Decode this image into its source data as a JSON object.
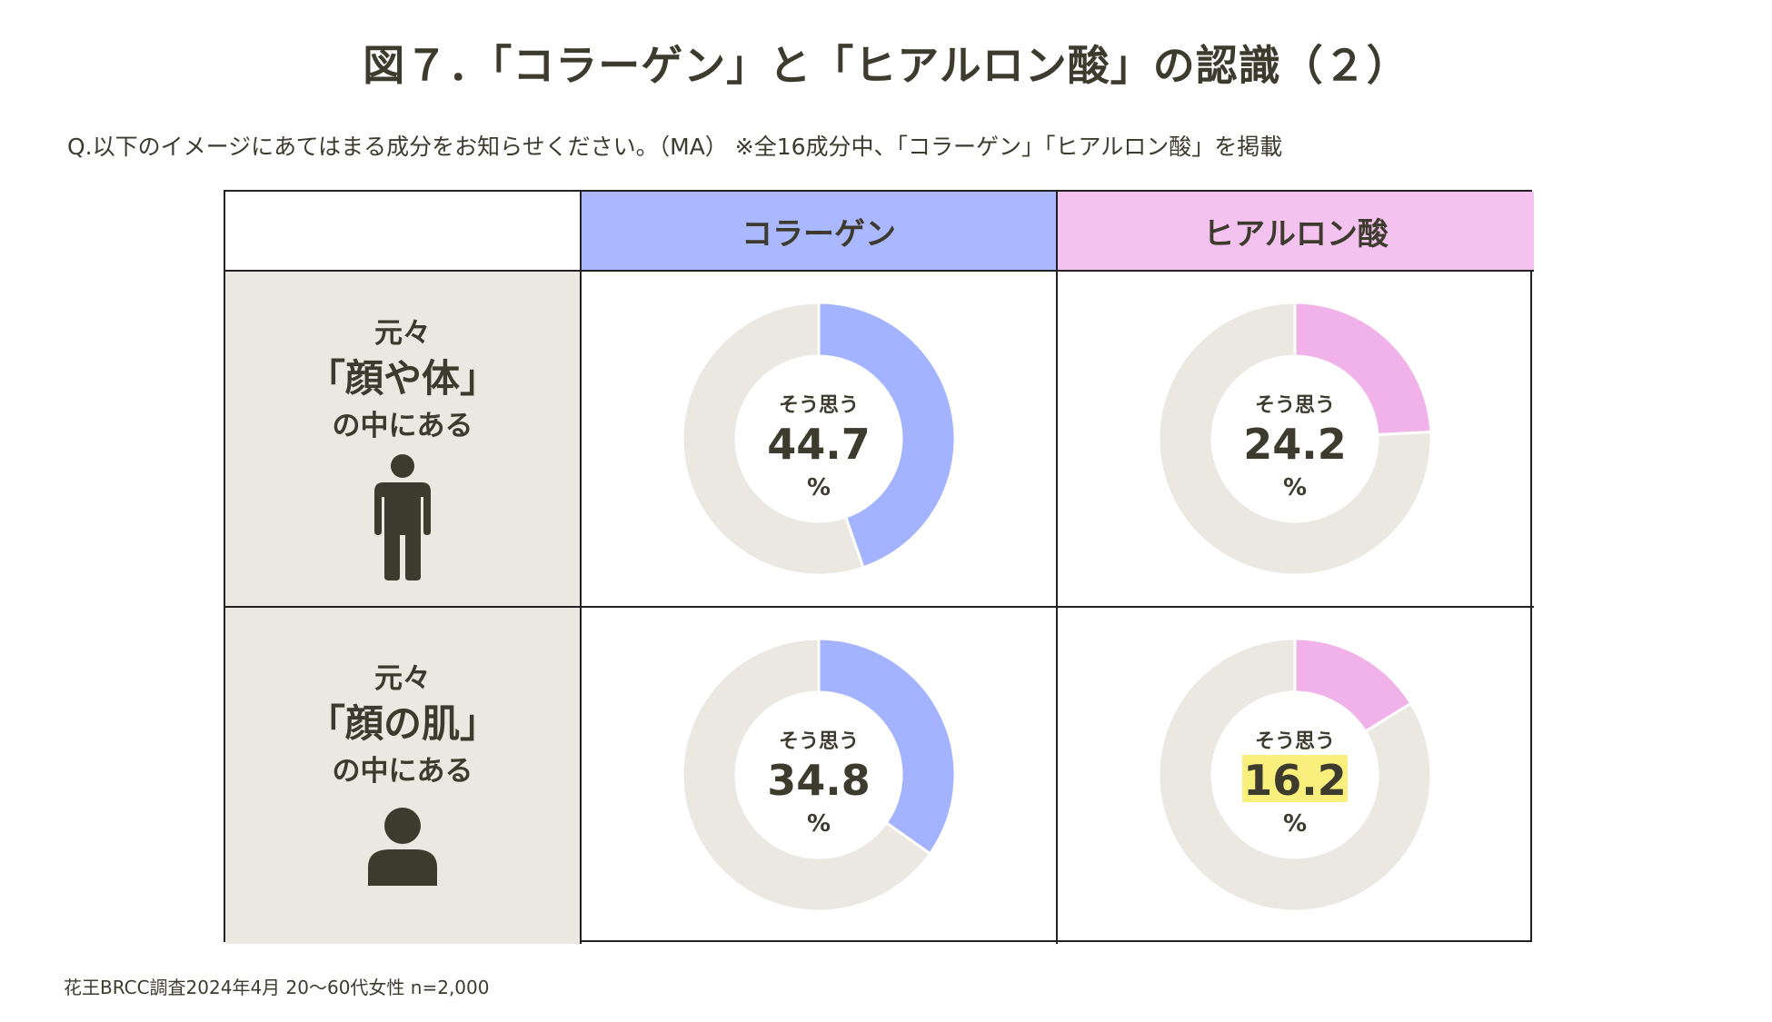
{
  "title": "図７．「コラーゲン」と「ヒアルロン酸」の認識（２）",
  "question": "Q.以下のイメージにあてはまる成分をお知らせください。（MA） ※全16成分中、「コラーゲン」「ヒアルロン酸」を掲載",
  "footnote": "花王BRCC調査2024年4月 20～60代女性 n=2,000",
  "columns": [
    "コラーゲン",
    "ヒアルロン酸"
  ],
  "rows": [
    {
      "line1": "元々",
      "line2": "「顔や体」",
      "line3": "の中にある",
      "icon": "person-full-body-icon"
    },
    {
      "line1": "元々",
      "line2": "「顔の肌」",
      "line3": "の中にある",
      "icon": "person-bust-icon"
    }
  ],
  "donut_label": "そう思う",
  "unit": "%",
  "colors": {
    "collagen": "#a3b3ff",
    "hyaluronic": "#f0b2e8",
    "remainder": "#ebe8e2",
    "highlight": "#f8ef7c",
    "text": "#3d3a2e"
  },
  "chart_data": {
    "type": "pie",
    "subtype": "donut",
    "title": "図７．「コラーゲン」と「ヒアルロン酸」の認識（２）",
    "categories": [
      "元々「顔や体」の中にある",
      "元々「顔の肌」の中にある"
    ],
    "series": [
      {
        "name": "コラーゲン",
        "values": [
          44.7,
          34.8
        ]
      },
      {
        "name": "ヒアルロン酸",
        "values": [
          24.2,
          16.2
        ]
      }
    ],
    "value_labels": {
      "コラーゲン": [
        "44.7",
        "34.8"
      ],
      "ヒアルロン酸": [
        "24.2",
        "16.2"
      ]
    },
    "highlighted": {
      "series": "ヒアルロン酸",
      "category_index": 1
    },
    "unit": "%"
  }
}
